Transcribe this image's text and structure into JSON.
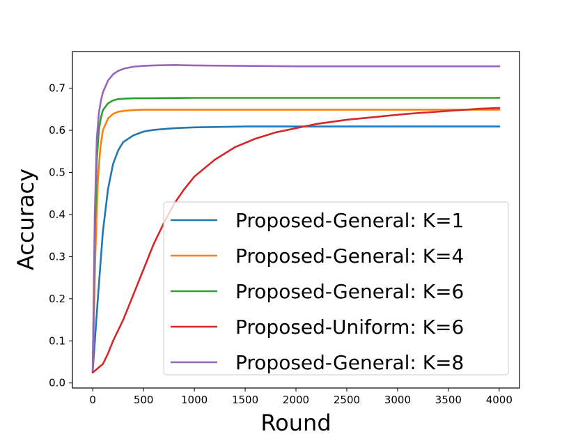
{
  "chart_data": {
    "type": "line",
    "title": "",
    "xlabel": "Round",
    "ylabel": "Accuracy",
    "xlim": [
      -200,
      4200
    ],
    "ylim": [
      -0.012,
      0.787
    ],
    "xticks": [
      0,
      500,
      1000,
      1500,
      2000,
      2500,
      3000,
      3500,
      4000
    ],
    "yticks": [
      0.0,
      0.1,
      0.2,
      0.3,
      0.4,
      0.5,
      0.6,
      0.7
    ],
    "ytick_labels": [
      "0.0",
      "0.1",
      "0.2",
      "0.3",
      "0.4",
      "0.5",
      "0.6",
      "0.7"
    ],
    "grid": false,
    "legend_position": "lower-right",
    "series": [
      {
        "name": "Proposed-General: K=1",
        "color": "#1f77b4",
        "x": [
          0,
          50,
          100,
          150,
          200,
          250,
          300,
          400,
          500,
          600,
          800,
          1000,
          1500,
          2000,
          3000,
          4000
        ],
        "y": [
          0.028,
          0.2,
          0.36,
          0.46,
          0.52,
          0.552,
          0.572,
          0.588,
          0.597,
          0.601,
          0.605,
          0.607,
          0.609,
          0.609,
          0.609,
          0.609
        ]
      },
      {
        "name": "Proposed-General: K=4",
        "color": "#ff7f0e",
        "x": [
          0,
          25,
          50,
          75,
          100,
          150,
          200,
          250,
          300,
          400,
          500,
          1000,
          2000,
          3000,
          4000
        ],
        "y": [
          0.03,
          0.3,
          0.48,
          0.56,
          0.6,
          0.628,
          0.639,
          0.644,
          0.646,
          0.648,
          0.649,
          0.649,
          0.649,
          0.649,
          0.649
        ]
      },
      {
        "name": "Proposed-General: K=6",
        "color": "#2ca02c",
        "x": [
          0,
          20,
          40,
          60,
          80,
          100,
          150,
          200,
          250,
          300,
          400,
          500,
          1000,
          2000,
          3000,
          4000
        ],
        "y": [
          0.03,
          0.35,
          0.53,
          0.6,
          0.63,
          0.648,
          0.664,
          0.671,
          0.674,
          0.675,
          0.676,
          0.676,
          0.677,
          0.677,
          0.677,
          0.677
        ]
      },
      {
        "name": "Proposed-Uniform: K=6",
        "color": "#d62728",
        "x": [
          0,
          50,
          100,
          150,
          200,
          300,
          400,
          500,
          600,
          700,
          800,
          900,
          1000,
          1200,
          1400,
          1600,
          1800,
          2000,
          2200,
          2500,
          2800,
          3000,
          3200,
          3500,
          3800,
          4000
        ],
        "y": [
          0.025,
          0.035,
          0.045,
          0.07,
          0.1,
          0.15,
          0.21,
          0.27,
          0.33,
          0.38,
          0.425,
          0.46,
          0.49,
          0.53,
          0.56,
          0.58,
          0.595,
          0.605,
          0.615,
          0.625,
          0.632,
          0.637,
          0.641,
          0.646,
          0.651,
          0.653
        ]
      },
      {
        "name": "Proposed-General: K=8",
        "color": "#9467bd",
        "x": [
          0,
          20,
          40,
          60,
          80,
          100,
          150,
          200,
          250,
          300,
          400,
          500,
          600,
          800,
          1000,
          1500,
          2000,
          3000,
          4000
        ],
        "y": [
          0.03,
          0.4,
          0.58,
          0.64,
          0.67,
          0.69,
          0.718,
          0.733,
          0.741,
          0.746,
          0.751,
          0.753,
          0.754,
          0.755,
          0.754,
          0.753,
          0.752,
          0.752,
          0.752
        ]
      }
    ]
  }
}
